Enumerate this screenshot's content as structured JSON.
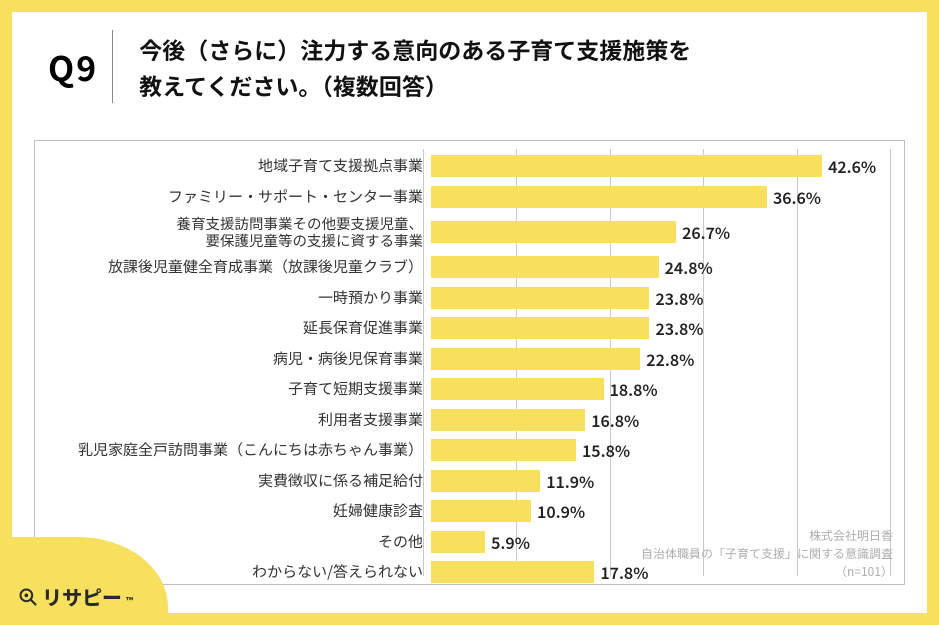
{
  "colors": {
    "border": "#f8e05f",
    "bar": "#f8df5e",
    "grid": "#c9c9c9",
    "text": "#222222",
    "attr": "#aeaeae",
    "bg": "#ffffff"
  },
  "header": {
    "qnum": "Q9",
    "title": "今後（さらに）注力する意向のある子育て支援施策を\n教えてください。（複数回答）"
  },
  "chart": {
    "type": "bar-horizontal",
    "xmin": 0,
    "xmax": 50,
    "xgrid": [
      0,
      10,
      20,
      30,
      40,
      50
    ],
    "bar_color": "#f8df5e",
    "label_fontsize": 15,
    "value_fontsize": 16,
    "items": [
      {
        "label": "地域子育て支援拠点事業",
        "value": 42.6
      },
      {
        "label": "ファミリー・サポート・センター事業",
        "value": 36.6
      },
      {
        "label": "養育支援訪問事業その他要支援児童、\n要保護児童等の支援に資する事業",
        "value": 26.7,
        "multiline": true
      },
      {
        "label": "放課後児童健全育成事業（放課後児童クラブ）",
        "value": 24.8
      },
      {
        "label": "一時預かり事業",
        "value": 23.8
      },
      {
        "label": "延長保育促進事業",
        "value": 23.8
      },
      {
        "label": "病児・病後児保育事業",
        "value": 22.8
      },
      {
        "label": "子育て短期支援事業",
        "value": 18.8
      },
      {
        "label": "利用者支援事業",
        "value": 16.8
      },
      {
        "label": "乳児家庭全戸訪問事業（こんにちは赤ちゃん事業）",
        "value": 15.8
      },
      {
        "label": "実費徴収に係る補足給付",
        "value": 11.9
      },
      {
        "label": "妊婦健康診査",
        "value": 10.9
      },
      {
        "label": "その他",
        "value": 5.9
      },
      {
        "label": "わからない/答えられない",
        "value": 17.8
      }
    ]
  },
  "attribution": {
    "line1": "株式会社明日香",
    "line2": "自治体職員の「子育て支援」に関する意識調査",
    "line3": "（n=101）"
  },
  "logo": {
    "text": "リサピー",
    "tm": "™"
  }
}
